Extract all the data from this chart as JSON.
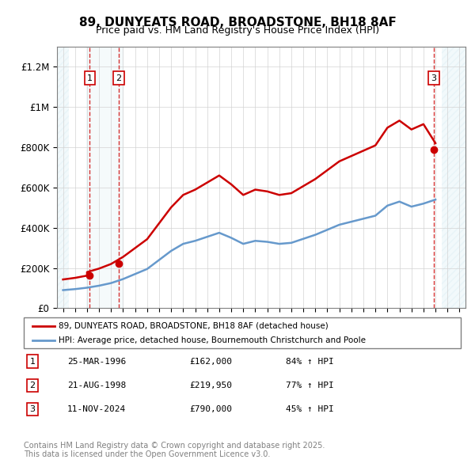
{
  "title": "89, DUNYEATS ROAD, BROADSTONE, BH18 8AF",
  "subtitle": "Price paid vs. HM Land Registry's House Price Index (HPI)",
  "legend_line1": "89, DUNYEATS ROAD, BROADSTONE, BH18 8AF (detached house)",
  "legend_line2": "HPI: Average price, detached house, Bournemouth Christchurch and Poole",
  "transactions": [
    {
      "num": 1,
      "date": "25-MAR-1996",
      "year": 1996.23,
      "price": 162000,
      "label": "84% ↑ HPI"
    },
    {
      "num": 2,
      "date": "21-AUG-1998",
      "year": 1998.64,
      "price": 219950,
      "label": "77% ↑ HPI"
    },
    {
      "num": 3,
      "date": "11-NOV-2024",
      "year": 2024.86,
      "price": 790000,
      "label": "45% ↑ HPI"
    }
  ],
  "footnote1": "Contains HM Land Registry data © Crown copyright and database right 2025.",
  "footnote2": "This data is licensed under the Open Government Licence v3.0.",
  "hpi_color": "#6699cc",
  "price_color": "#cc0000",
  "hatch_color": "#ddddff",
  "ylim": [
    0,
    1300000
  ],
  "xlim_start": 1993.5,
  "xlim_end": 2027.5
}
